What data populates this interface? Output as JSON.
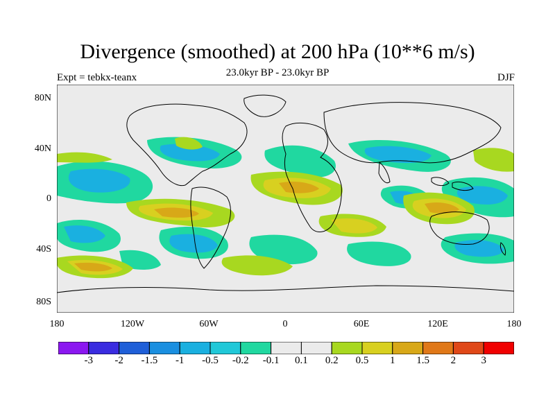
{
  "title": "Divergence (smoothed) at 200 hPa (10**6 m/s)",
  "subtitle": "23.0kyr BP - 23.0kyr BP",
  "left_label": "Expt = tebkx-teanx",
  "right_label": "DJF",
  "chart_data": {
    "type": "heatmap",
    "projection": "cylindrical-equidistant",
    "lat_ticks": [
      "80N",
      "40N",
      "0",
      "40S",
      "80S"
    ],
    "lon_ticks": [
      "180",
      "120W",
      "60W",
      "0",
      "60E",
      "120E",
      "180"
    ],
    "colorbar": {
      "labels": [
        "-3",
        "-2",
        "-1.5",
        "-1",
        "-0.5",
        "-0.2",
        "-0.1",
        "0.1",
        "0.2",
        "0.5",
        "1",
        "1.5",
        "2",
        "3"
      ],
      "colors": [
        "#8b17f0",
        "#3a2ce0",
        "#1f5fd8",
        "#1a8fe0",
        "#1ab0e0",
        "#20c8d8",
        "#20d8a0",
        "#ebebeb",
        "#a8d820",
        "#d8d020",
        "#d8a818",
        "#e07818",
        "#e04818",
        "#f00000"
      ]
    },
    "field_description": "Alternating positive (yellow-orange) and negative (cyan-green) divergence bands over tropics/subtropics; land masses outlined."
  }
}
